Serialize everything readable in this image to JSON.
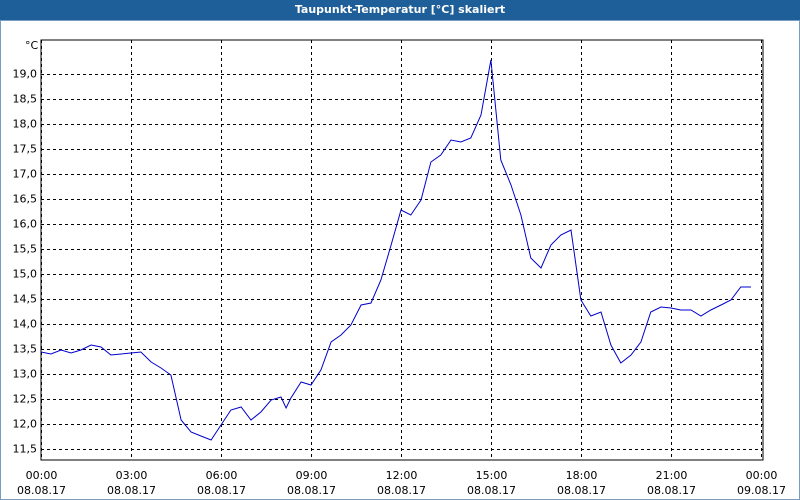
{
  "chart_data": {
    "type": "line",
    "title": "Taupunkt-Temperatur [°C] skaliert",
    "y_unit": "°C",
    "x": [
      0,
      0.33,
      0.67,
      1,
      1.33,
      1.67,
      2,
      2.33,
      2.67,
      3,
      3.33,
      3.67,
      4,
      4.33,
      4.67,
      5,
      5.33,
      5.67,
      6,
      6.33,
      6.67,
      7,
      7.33,
      7.67,
      8,
      8.17,
      8.33,
      8.67,
      9,
      9.33,
      9.67,
      10,
      10.33,
      10.67,
      11,
      11.33,
      11.67,
      12,
      12.33,
      12.67,
      13,
      13.33,
      13.67,
      14,
      14.33,
      14.67,
      15,
      15.33,
      15.67,
      16,
      16.33,
      16.67,
      17,
      17.33,
      17.67,
      18,
      18.33,
      18.67,
      19,
      19.33,
      19.67,
      20,
      20.33,
      20.67,
      21,
      21.33,
      21.67,
      22,
      22.33,
      22.67,
      23,
      23.33,
      23.67
    ],
    "series": [
      {
        "name": "Taupunkt",
        "color": "#0000cc",
        "values": [
          13.44,
          13.4,
          13.48,
          13.42,
          13.48,
          13.58,
          13.54,
          13.38,
          13.4,
          13.42,
          13.44,
          13.24,
          13.12,
          12.98,
          12.08,
          11.84,
          11.76,
          11.68,
          11.98,
          12.28,
          12.34,
          12.08,
          12.24,
          12.48,
          12.54,
          12.32,
          12.52,
          12.84,
          12.78,
          13.08,
          13.64,
          13.78,
          13.98,
          14.38,
          14.42,
          14.88,
          15.58,
          16.28,
          16.18,
          16.48,
          17.24,
          17.38,
          17.68,
          17.64,
          17.72,
          18.18,
          19.28,
          17.28,
          16.78,
          16.18,
          15.32,
          15.12,
          15.58,
          15.78,
          15.88,
          14.48,
          14.16,
          14.24,
          13.58,
          13.22,
          13.38,
          13.64,
          14.24,
          14.34,
          14.32,
          14.28,
          14.28,
          14.16,
          14.28,
          14.38,
          14.48,
          14.74,
          14.74
        ]
      }
    ],
    "xlim": [
      0,
      24.07
    ],
    "ylim": [
      11.28,
      19.68
    ],
    "xticks": [
      {
        "value": 0,
        "label": "00:00"
      },
      {
        "value": 3,
        "label": "03:00"
      },
      {
        "value": 6,
        "label": "06:00"
      },
      {
        "value": 9,
        "label": "09:00"
      },
      {
        "value": 12,
        "label": "12:00"
      },
      {
        "value": 15,
        "label": "15:00"
      },
      {
        "value": 18,
        "label": "18:00"
      },
      {
        "value": 21,
        "label": "21:00"
      },
      {
        "value": 24,
        "label": "00:00"
      }
    ],
    "xtick_dates": [
      "08.08.17",
      "08.08.17",
      "08.08.17",
      "08.08.17",
      "08.08.17",
      "08.08.17",
      "08.08.17",
      "08.08.17",
      "09.08.17"
    ],
    "yticks": [
      {
        "value": 11.5,
        "label": "11,5"
      },
      {
        "value": 12,
        "label": "12,0"
      },
      {
        "value": 12.5,
        "label": "12,5"
      },
      {
        "value": 13,
        "label": "13,0"
      },
      {
        "value": 13.5,
        "label": "13,5"
      },
      {
        "value": 14,
        "label": "14,0"
      },
      {
        "value": 14.5,
        "label": "14,5"
      },
      {
        "value": 15,
        "label": "15,0"
      },
      {
        "value": 15.5,
        "label": "15,5"
      },
      {
        "value": 16,
        "label": "16,0"
      },
      {
        "value": 16.5,
        "label": "16,5"
      },
      {
        "value": 17,
        "label": "17,0"
      },
      {
        "value": 17.5,
        "label": "17,5"
      },
      {
        "value": 18,
        "label": "18,0"
      },
      {
        "value": 18.5,
        "label": "18,5"
      },
      {
        "value": 19,
        "label": "19,0"
      }
    ],
    "grid": true
  }
}
